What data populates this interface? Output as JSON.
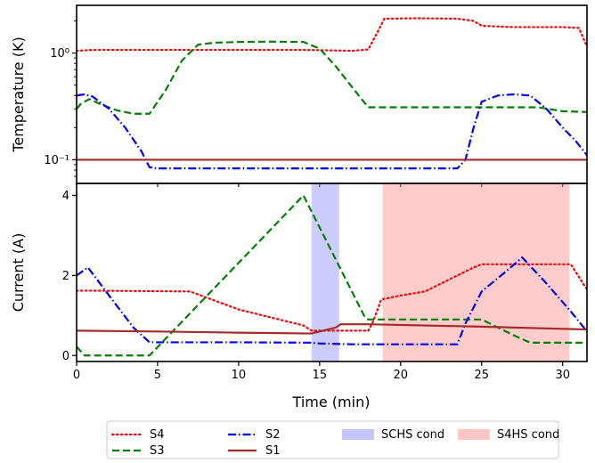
{
  "chart_data": [
    {
      "type": "line",
      "panel": "top",
      "yscale": "log",
      "ylabel": "Temperature (K)",
      "xlabel": "",
      "xlim": [
        0,
        31.5
      ],
      "ylim": [
        0.06,
        2.8
      ],
      "yticks": [
        {
          "value": 1,
          "label": "10⁰"
        },
        {
          "value": 0.1,
          "label": "10⁻¹"
        }
      ],
      "series": [
        {
          "name": "S4",
          "color": "#ff0000",
          "dash": "dotted",
          "x": [
            0,
            1,
            5,
            10,
            14,
            15.5,
            17,
            18,
            18.5,
            19,
            21,
            23.5,
            24.5,
            25,
            27,
            30,
            31,
            31.5
          ],
          "y": [
            1.05,
            1.07,
            1.07,
            1.07,
            1.07,
            1.06,
            1.05,
            1.08,
            1.5,
            2.1,
            2.12,
            2.1,
            2.0,
            1.8,
            1.75,
            1.75,
            1.72,
            1.15
          ]
        },
        {
          "name": "S3",
          "color": "#008000",
          "dash": "dashed",
          "x": [
            0,
            0.3,
            0.8,
            1.5,
            2.5,
            3.5,
            4.5,
            5.5,
            6.5,
            7.5,
            8.5,
            10,
            12,
            14,
            15,
            16,
            17,
            18,
            20,
            23,
            25,
            27,
            28.5,
            30,
            31.5
          ],
          "y": [
            0.3,
            0.34,
            0.37,
            0.33,
            0.29,
            0.27,
            0.27,
            0.45,
            0.85,
            1.2,
            1.25,
            1.27,
            1.28,
            1.27,
            1.1,
            0.75,
            0.48,
            0.31,
            0.31,
            0.31,
            0.31,
            0.31,
            0.31,
            0.285,
            0.28
          ]
        },
        {
          "name": "S2",
          "color": "#0000ff",
          "dash": "dashdot",
          "x": [
            0,
            0.5,
            1,
            2,
            3,
            4,
            4.5,
            5,
            10,
            15,
            20,
            23.5,
            24,
            24.5,
            25,
            26,
            27,
            28,
            29,
            30,
            30.8,
            31.5
          ],
          "y": [
            0.4,
            0.41,
            0.39,
            0.3,
            0.2,
            0.12,
            0.085,
            0.083,
            0.083,
            0.083,
            0.083,
            0.083,
            0.1,
            0.2,
            0.35,
            0.4,
            0.41,
            0.4,
            0.3,
            0.2,
            0.15,
            0.11
          ]
        },
        {
          "name": "S1",
          "color": "#a52a2a",
          "dash": "solid",
          "x": [
            0,
            31.5
          ],
          "y": [
            0.1,
            0.1
          ]
        }
      ]
    },
    {
      "type": "line",
      "panel": "bottom",
      "xlabel": "Time (min)",
      "ylabel": "Current (A)",
      "xlim": [
        0,
        31.5
      ],
      "ylim": [
        -0.15,
        4.3
      ],
      "xticks": [
        0,
        5,
        10,
        15,
        20,
        25,
        30
      ],
      "yticks": [
        0,
        2,
        4
      ],
      "bands": [
        {
          "name": "SCHS cond",
          "color": "#7f7fff",
          "opacity": 0.4,
          "x": [
            14.5,
            16.2
          ]
        },
        {
          "name": "S4HS cond",
          "color": "#ff7f7f",
          "opacity": 0.4,
          "x": [
            18.9,
            30.4
          ]
        }
      ],
      "series": [
        {
          "name": "S4",
          "color": "#ff0000",
          "dash": "dotted",
          "x": [
            0,
            1,
            7,
            10,
            14,
            14.5,
            15.5,
            18,
            18.3,
            18.8,
            20,
            21.5,
            22.5,
            23.5,
            24.5,
            25,
            28,
            30.5,
            31.5
          ],
          "y": [
            1.62,
            1.62,
            1.6,
            1.15,
            0.75,
            0.62,
            0.62,
            0.62,
            0.85,
            1.4,
            1.5,
            1.6,
            1.8,
            2.0,
            2.2,
            2.28,
            2.28,
            2.28,
            1.65
          ]
        },
        {
          "name": "S3",
          "color": "#008000",
          "dash": "dashed",
          "x": [
            0,
            0.5,
            4.5,
            14,
            17.8,
            18,
            20,
            24,
            25,
            26,
            27,
            28,
            31.5
          ],
          "y": [
            0.22,
            0.0,
            0.0,
            4.0,
            0.95,
            0.9,
            0.9,
            0.9,
            0.9,
            0.7,
            0.5,
            0.32,
            0.32
          ]
        },
        {
          "name": "S2",
          "color": "#0000ff",
          "dash": "dashdot",
          "x": [
            0,
            0.7,
            2,
            3.5,
            4.5,
            5,
            10,
            14.5,
            15,
            17,
            20,
            23.5,
            24,
            25,
            26.5,
            27.5,
            29,
            30.5,
            31.5
          ],
          "y": [
            2.0,
            2.2,
            1.5,
            0.7,
            0.33,
            0.33,
            0.33,
            0.32,
            0.3,
            0.28,
            0.28,
            0.28,
            0.8,
            1.6,
            2.1,
            2.45,
            1.8,
            1.1,
            0.6
          ]
        },
        {
          "name": "S1",
          "color": "#a52a2a",
          "dash": "solid",
          "x": [
            0,
            5,
            10,
            14.5,
            15.5,
            16,
            16.3,
            18,
            25,
            31.5
          ],
          "y": [
            0.62,
            0.6,
            0.57,
            0.55,
            0.65,
            0.7,
            0.78,
            0.78,
            0.72,
            0.65
          ]
        }
      ]
    }
  ],
  "legend": [
    {
      "label": "S4",
      "kind": "line",
      "color": "#ff0000",
      "dash": "dotted"
    },
    {
      "label": "S2",
      "kind": "line",
      "color": "#0000ff",
      "dash": "dashdot"
    },
    {
      "label": "SCHS cond",
      "kind": "patch",
      "color": "#7f7fff"
    },
    {
      "label": "S4HS cond",
      "kind": "patch",
      "color": "#ff7f7f"
    },
    {
      "label": "S3",
      "kind": "line",
      "color": "#008000",
      "dash": "dashed"
    },
    {
      "label": "S1",
      "kind": "line",
      "color": "#a52a2a",
      "dash": "solid"
    }
  ]
}
